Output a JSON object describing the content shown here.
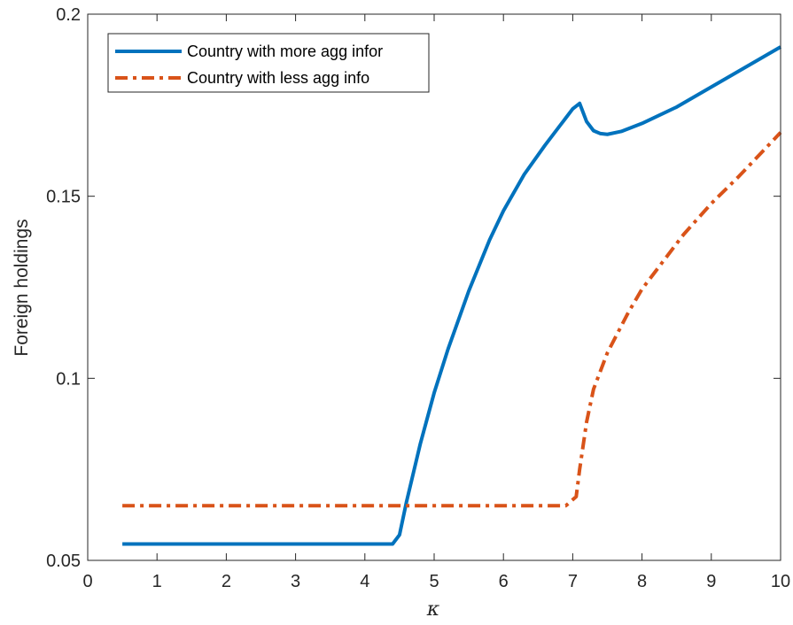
{
  "chart_data": {
    "type": "line",
    "title": "",
    "xlabel": "κ",
    "ylabel": "Foreign holdings",
    "xlim": [
      0,
      10
    ],
    "ylim": [
      0.05,
      0.2
    ],
    "xticks": [
      0,
      1,
      2,
      3,
      4,
      5,
      6,
      7,
      8,
      9,
      10
    ],
    "xtick_labels": [
      "0",
      "1",
      "2",
      "3",
      "4",
      "5",
      "6",
      "7",
      "8",
      "9",
      "10"
    ],
    "yticks": [
      0.05,
      0.1,
      0.15,
      0.2
    ],
    "ytick_labels": [
      "0.05",
      "0.1",
      "0.15",
      "0.2"
    ],
    "grid": false,
    "legend_position": "top-left",
    "series": [
      {
        "name": "Country with more agg infor",
        "color": "#0072BD",
        "style": "solid",
        "x": [
          0.5,
          1,
          2,
          3,
          4,
          4.4,
          4.5,
          4.6,
          4.8,
          5.0,
          5.2,
          5.5,
          5.8,
          6.0,
          6.3,
          6.6,
          6.9,
          7.0,
          7.1,
          7.2,
          7.3,
          7.4,
          7.5,
          7.7,
          8.0,
          8.5,
          9.0,
          9.5,
          10.0
        ],
        "y": [
          0.0545,
          0.0545,
          0.0545,
          0.0545,
          0.0545,
          0.0545,
          0.057,
          0.066,
          0.082,
          0.096,
          0.108,
          0.124,
          0.138,
          0.146,
          0.156,
          0.164,
          0.1715,
          0.174,
          0.1755,
          0.1705,
          0.168,
          0.1672,
          0.167,
          0.1678,
          0.17,
          0.1745,
          0.18,
          0.1855,
          0.191
        ]
      },
      {
        "name": "Country with less agg info",
        "color": "#D95319",
        "style": "dashdot",
        "x": [
          0.5,
          1,
          2,
          3,
          4,
          5,
          6,
          6.9,
          7.05,
          7.1,
          7.2,
          7.3,
          7.5,
          7.8,
          8.0,
          8.3,
          8.6,
          9.0,
          9.4,
          9.7,
          10.0
        ],
        "y": [
          0.065,
          0.065,
          0.065,
          0.065,
          0.065,
          0.065,
          0.065,
          0.065,
          0.0675,
          0.075,
          0.088,
          0.097,
          0.107,
          0.118,
          0.1245,
          0.132,
          0.1395,
          0.148,
          0.1555,
          0.1615,
          0.1675
        ]
      }
    ]
  }
}
